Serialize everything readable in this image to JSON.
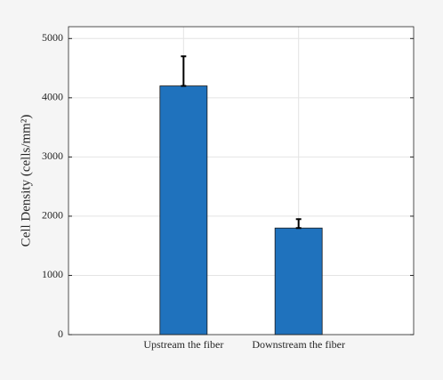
{
  "chart_data": {
    "type": "bar",
    "ylabel": "Cell Density (cells/mm²)",
    "categories": [
      "Upstream the fiber",
      "Downstream the fiber"
    ],
    "values": [
      4200,
      1800
    ],
    "errors": [
      500,
      150
    ],
    "color": "#1f72bd",
    "ylim": [
      0,
      5200
    ],
    "yticks": [
      0,
      1000,
      2000,
      3000,
      4000,
      5000
    ],
    "grid": true
  }
}
